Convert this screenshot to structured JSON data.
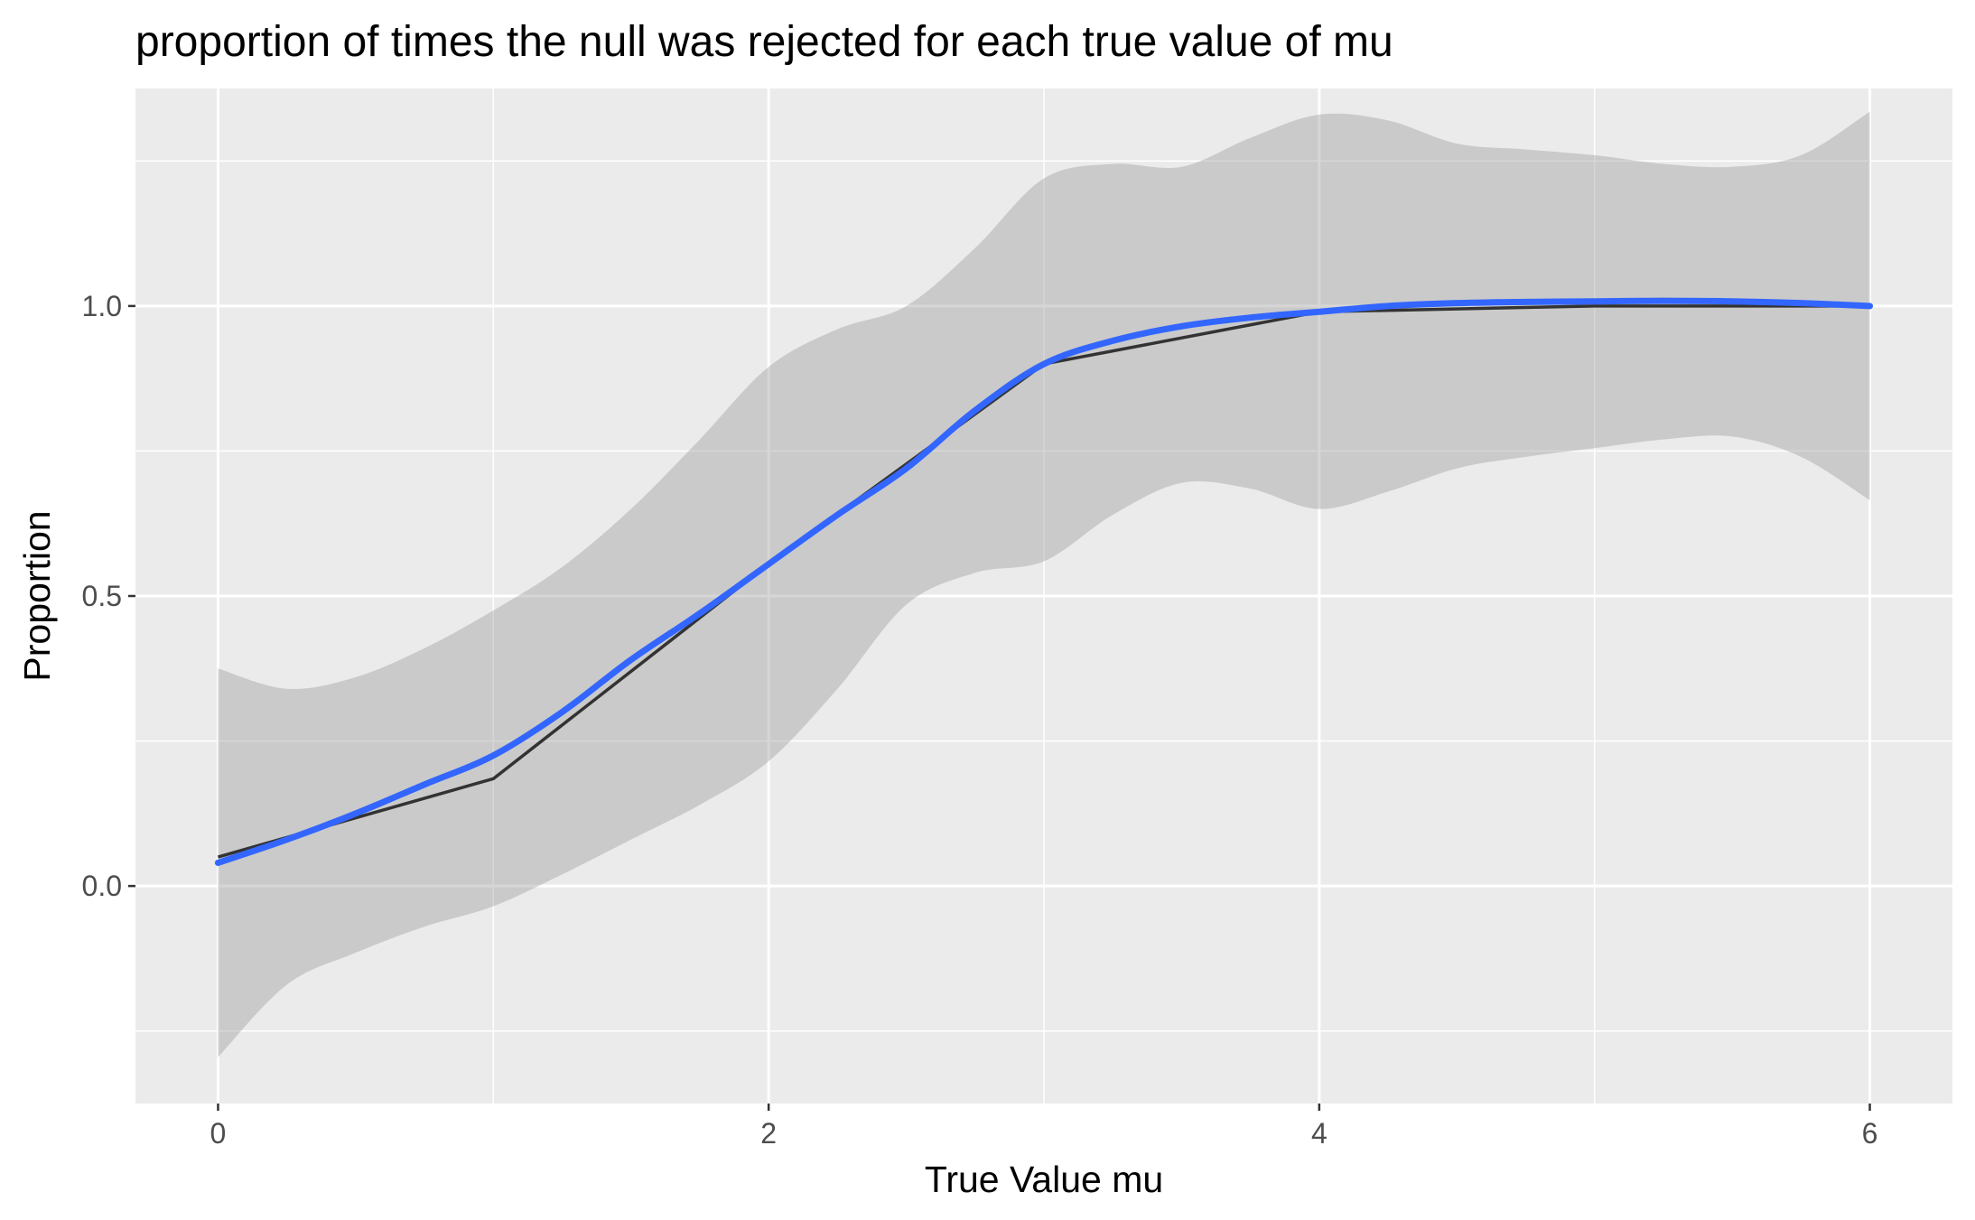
{
  "chart_data": {
    "type": "line",
    "title": "proportion of times the null was rejected for each true value of mu",
    "xlabel": "True Value mu",
    "ylabel": "Proportion",
    "xlim": [
      -0.3,
      6.3
    ],
    "ylim": [
      -0.375,
      1.375
    ],
    "x_ticks": [
      0,
      2,
      4,
      6
    ],
    "x_tick_labels": [
      "0",
      "2",
      "4",
      "6"
    ],
    "y_ticks": [
      0.0,
      0.5,
      1.0
    ],
    "y_tick_labels": [
      "0.0",
      "0.5",
      "1.0"
    ],
    "grid": true,
    "legend": "none",
    "series": [
      {
        "kind": "line",
        "color": "#333333",
        "x": [
          0,
          1,
          2,
          3,
          4,
          5,
          6
        ],
        "values": [
          0.05,
          0.185,
          0.555,
          0.9,
          0.99,
          1.0,
          1.0
        ]
      },
      {
        "kind": "smooth",
        "color": "#3366FF",
        "x": [
          0,
          0.25,
          0.5,
          0.75,
          1,
          1.25,
          1.5,
          1.75,
          2,
          2.25,
          2.5,
          2.75,
          3,
          3.25,
          3.5,
          3.75,
          4,
          4.25,
          4.5,
          4.75,
          5,
          5.25,
          5.5,
          5.75,
          6
        ],
        "values": [
          0.04,
          0.08,
          0.125,
          0.175,
          0.225,
          0.3,
          0.39,
          0.47,
          0.555,
          0.64,
          0.72,
          0.82,
          0.9,
          0.94,
          0.965,
          0.98,
          0.99,
          1.0,
          1.005,
          1.007,
          1.008,
          1.009,
          1.008,
          1.005,
          1.0
        ],
        "ci_lower": [
          -0.295,
          -0.17,
          -0.115,
          -0.07,
          -0.035,
          0.02,
          0.08,
          0.14,
          0.215,
          0.34,
          0.485,
          0.54,
          0.56,
          0.64,
          0.695,
          0.685,
          0.65,
          0.68,
          0.72,
          0.74,
          0.755,
          0.77,
          0.775,
          0.74,
          0.665
        ],
        "ci_upper": [
          0.375,
          0.34,
          0.36,
          0.41,
          0.475,
          0.55,
          0.65,
          0.77,
          0.895,
          0.96,
          1.0,
          1.1,
          1.22,
          1.245,
          1.24,
          1.29,
          1.33,
          1.32,
          1.28,
          1.27,
          1.26,
          1.245,
          1.24,
          1.26,
          1.335
        ]
      }
    ]
  }
}
